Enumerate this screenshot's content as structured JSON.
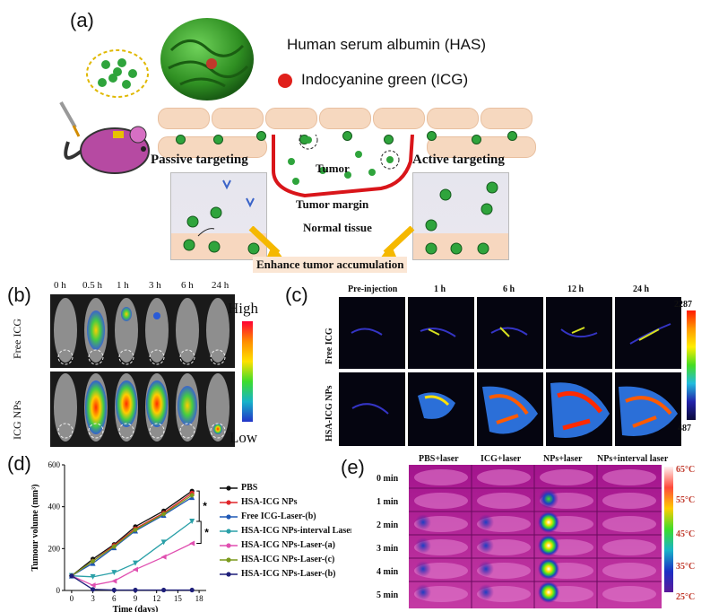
{
  "panel_a": {
    "label": "(a)",
    "has_label": "Human serum albumin (HAS)",
    "icg_label": "Indocyanine green (ICG)",
    "passive": "Passive targeting",
    "active": "Active targeting",
    "tumor": "Tumor",
    "tumor_margin": "Tumor margin",
    "normal_tissue": "Normal tissue",
    "enhance": "Enhance tumor accumulation",
    "colors": {
      "icg": "#e0201b",
      "particle": "#2fa43c",
      "tumor_border": "#d9151a",
      "arrow": "#f5b800"
    }
  },
  "panel_b": {
    "label": "(b)",
    "times": [
      "0 h",
      "0.5 h",
      "1 h",
      "3 h",
      "6 h",
      "24 h"
    ],
    "rows": [
      "Free ICG",
      "ICG NPs"
    ],
    "scale_high": "High",
    "scale_low": "Low"
  },
  "panel_c": {
    "label": "(c)",
    "times": [
      "Pre-injection",
      "1 h",
      "6 h",
      "12 h",
      "24 h"
    ],
    "rows": [
      "Free ICG",
      "HSA-ICG NPs"
    ],
    "scale_max": "2287",
    "scale_min": "487"
  },
  "panel_d": {
    "label": "(d)",
    "significance": [
      "*",
      "*"
    ]
  },
  "panel_e": {
    "label": "(e)",
    "columns": [
      "PBS+laser",
      "ICG+laser",
      "NPs+laser",
      "NPs+interval laser"
    ],
    "rows": [
      "0 min",
      "1 min",
      "2 min",
      "3 min",
      "4 min",
      "5 min"
    ],
    "scale": [
      "65°C",
      "55°C",
      "45°C",
      "35°C",
      "25°C"
    ]
  },
  "chart_data": {
    "type": "line",
    "xlabel": "Time (days)",
    "ylabel": "Tumour volume (mm³)",
    "x": [
      0,
      3,
      6,
      9,
      13,
      17
    ],
    "xticks": [
      0,
      3,
      6,
      9,
      12,
      15,
      18
    ],
    "yticks": [
      0,
      200,
      400,
      600
    ],
    "xlim": [
      -1,
      19
    ],
    "ylim": [
      0,
      600
    ],
    "series": [
      {
        "name": "PBS",
        "color": "#111111",
        "marker": "circle",
        "values": [
          70,
          150,
          220,
          305,
          380,
          475
        ]
      },
      {
        "name": "HSA-ICG NPs",
        "color": "#e0262b",
        "marker": "circle",
        "values": [
          70,
          140,
          215,
          295,
          370,
          465
        ]
      },
      {
        "name": "Free ICG-Laser-(b)",
        "color": "#1f58b5",
        "marker": "triangle",
        "values": [
          70,
          130,
          205,
          285,
          360,
          445
        ]
      },
      {
        "name": "HSA-ICG NPs-interval Laser-(b)",
        "color": "#2aa0a8",
        "marker": "triangle-down",
        "values": [
          70,
          65,
          85,
          130,
          230,
          330
        ]
      },
      {
        "name": "HSA-ICG NPs-Laser-(a)",
        "color": "#e04fb0",
        "marker": "triangle-left",
        "values": [
          70,
          25,
          45,
          100,
          160,
          225
        ]
      },
      {
        "name": "HSA-ICG NPs-Laser-(c)",
        "color": "#7b9a1d",
        "marker": "diamond",
        "values": [
          70,
          140,
          210,
          290,
          365,
          455
        ]
      },
      {
        "name": "HSA-ICG NPs-Laser-(b)",
        "color": "#1e1f7a",
        "marker": "circle",
        "values": [
          70,
          5,
          2,
          2,
          2,
          2
        ]
      }
    ]
  }
}
